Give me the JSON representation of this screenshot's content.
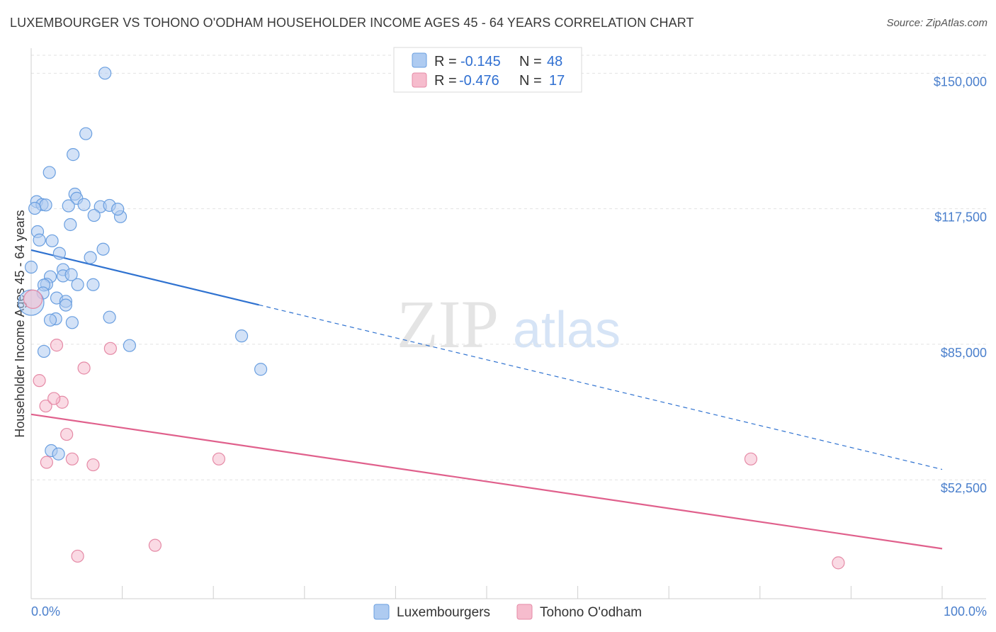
{
  "title": "LUXEMBOURGER VS TOHONO O'ODHAM HOUSEHOLDER INCOME AGES 45 - 64 YEARS CORRELATION CHART",
  "source": "Source: ZipAtlas.com",
  "watermark": {
    "zip": "ZIP",
    "atlas": "atlas"
  },
  "colors": {
    "blue_fill": "#aecbf1",
    "blue_stroke": "#6a9fe0",
    "blue_line": "#2f72d0",
    "pink_fill": "#f6bccd",
    "pink_stroke": "#e58aa6",
    "pink_line": "#e0608c",
    "tick_text": "#4a7fcc"
  },
  "legend": {
    "rows": [
      {
        "r_label": "R =",
        "r_value": "-0.145",
        "n_label": "N =",
        "n_value": "48"
      },
      {
        "r_label": "R =",
        "r_value": "-0.476",
        "n_label": "N =",
        "n_value": "17"
      }
    ]
  },
  "bottom_legend": [
    "Luxembourgers",
    "Tohono O'odham"
  ],
  "chart_data": {
    "type": "scatter",
    "title": "LUXEMBOURGER VS TOHONO O'ODHAM HOUSEHOLDER INCOME AGES 45 - 64 YEARS CORRELATION CHART",
    "xlabel": "",
    "ylabel": "Householder Income Ages 45 - 64 years",
    "xlim": [
      0,
      100
    ],
    "ylim": [
      24000,
      156000
    ],
    "x_tick_labels": [
      "0.0%",
      "100.0%"
    ],
    "y_ticks": [
      150000,
      117500,
      85000,
      52500
    ],
    "y_tick_labels": [
      "$150,000",
      "$117,500",
      "$85,000",
      "$52,500"
    ],
    "grid": true,
    "series": [
      {
        "name": "Luxembourgers",
        "r": -0.145,
        "n": 48,
        "points": [
          [
            8.1,
            150000
          ],
          [
            6.0,
            135500
          ],
          [
            4.6,
            130500
          ],
          [
            2.0,
            126200
          ],
          [
            4.8,
            121000
          ],
          [
            5.0,
            120000
          ],
          [
            0.6,
            119200
          ],
          [
            1.2,
            118500
          ],
          [
            1.6,
            118400
          ],
          [
            4.1,
            118200
          ],
          [
            5.8,
            118500
          ],
          [
            7.6,
            118000
          ],
          [
            8.6,
            118300
          ],
          [
            0.4,
            117600
          ],
          [
            6.9,
            115900
          ],
          [
            9.8,
            115600
          ],
          [
            4.3,
            113700
          ],
          [
            0.7,
            112000
          ],
          [
            0.9,
            110000
          ],
          [
            2.3,
            109800
          ],
          [
            7.9,
            107800
          ],
          [
            3.1,
            106800
          ],
          [
            6.5,
            105800
          ],
          [
            0.0,
            103500
          ],
          [
            3.5,
            102900
          ],
          [
            2.1,
            101200
          ],
          [
            3.5,
            101400
          ],
          [
            4.4,
            101700
          ],
          [
            1.7,
            99400
          ],
          [
            1.4,
            99200
          ],
          [
            5.1,
            99300
          ],
          [
            6.8,
            99300
          ],
          [
            1.3,
            97300
          ],
          [
            2.8,
            96100
          ],
          [
            3.8,
            95300
          ],
          [
            3.8,
            94400
          ],
          [
            2.7,
            91100
          ],
          [
            2.1,
            90800
          ],
          [
            4.5,
            90200
          ],
          [
            8.6,
            91500
          ],
          [
            23.1,
            87000
          ],
          [
            10.8,
            84700
          ],
          [
            1.4,
            83300
          ],
          [
            25.2,
            79000
          ],
          [
            2.2,
            59500
          ],
          [
            3.0,
            58700
          ],
          [
            9.5,
            117400
          ],
          [
            0.0,
            95000
          ]
        ]
      },
      {
        "name": "Tohono O'odham",
        "r": -0.476,
        "n": 17,
        "points": [
          [
            0.2,
            95800
          ],
          [
            2.8,
            84800
          ],
          [
            8.7,
            84000
          ],
          [
            5.8,
            79300
          ],
          [
            0.9,
            76300
          ],
          [
            1.6,
            70200
          ],
          [
            3.4,
            71100
          ],
          [
            2.5,
            72000
          ],
          [
            3.9,
            63400
          ],
          [
            1.7,
            56700
          ],
          [
            4.5,
            57500
          ],
          [
            6.8,
            56100
          ],
          [
            20.6,
            57500
          ],
          [
            79.0,
            57500
          ],
          [
            13.6,
            36800
          ],
          [
            5.1,
            34200
          ],
          [
            88.6,
            32600
          ]
        ]
      }
    ],
    "trendlines": [
      {
        "series": "Luxembourgers",
        "x": [
          0,
          100
        ],
        "y": [
          107600,
          55000
        ],
        "solid_until_x": 25.0
      },
      {
        "series": "Tohono O'odham",
        "x": [
          0,
          100
        ],
        "y": [
          68200,
          36000
        ]
      }
    ]
  }
}
